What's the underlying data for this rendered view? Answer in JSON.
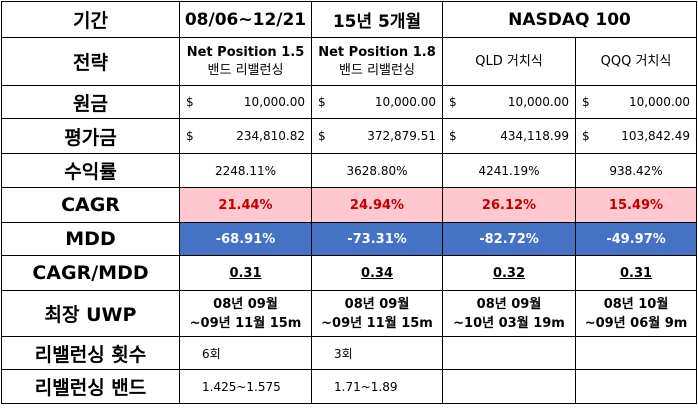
{
  "header": {
    "label": "기간",
    "periods": [
      "08/06~12/21",
      "15년 5개월"
    ],
    "benchmark": "NASDAQ 100"
  },
  "strategy": {
    "label": "전략",
    "cols": [
      {
        "line1": "Net Position 1.5",
        "line2": "밴드 리밸런싱"
      },
      {
        "line1": "Net Position 1.8",
        "line2": "밴드 리밸런싱"
      },
      {
        "line1": "QLD 거치식",
        "line2": ""
      },
      {
        "line1": "QQQ 거치식",
        "line2": ""
      }
    ]
  },
  "principal": {
    "label": "원금",
    "currency": "$",
    "values": [
      "10,000.00",
      "10,000.00",
      "10,000.00",
      "10,000.00"
    ]
  },
  "valuation": {
    "label": "평가금",
    "currency": "$",
    "values": [
      "234,810.82",
      "372,879.51",
      "434,118.99",
      "103,842.49"
    ]
  },
  "return_rate": {
    "label": "수익률",
    "values": [
      "2248.11%",
      "3628.80%",
      "4241.19%",
      "938.42%"
    ]
  },
  "cagr": {
    "label": "CAGR",
    "values": [
      "21.44%",
      "24.94%",
      "26.12%",
      "15.49%"
    ]
  },
  "mdd": {
    "label": "MDD",
    "values": [
      "-68.91%",
      "-73.31%",
      "-82.72%",
      "-49.97%"
    ]
  },
  "cagr_mdd": {
    "label": "CAGR/MDD",
    "values": [
      "0.31",
      "0.34",
      "0.32",
      "0.31"
    ]
  },
  "uwp": {
    "label": "최장 UWP",
    "values": [
      {
        "line1": "08년 09월",
        "line2": "~09년 11월 15m"
      },
      {
        "line1": "08년 09월",
        "line2": "~09년 11월 15m"
      },
      {
        "line1": "08년 09월",
        "line2": "~10년 03월 19m"
      },
      {
        "line1": "08년 10월",
        "line2": "~09년 06월 9m"
      }
    ]
  },
  "rebalance_count": {
    "label": "리밸런싱 횟수",
    "values": [
      "6회",
      "3회",
      "",
      ""
    ]
  },
  "rebalance_band": {
    "label": "리밸런싱 밴드",
    "values": [
      "1.425~1.575",
      "1.71~1.89",
      "",
      ""
    ]
  },
  "colors": {
    "cagr_bg": "#ffc7ce",
    "cagr_text": "#c00000",
    "mdd_bg": "#4472c4",
    "mdd_text": "#ffffff"
  }
}
